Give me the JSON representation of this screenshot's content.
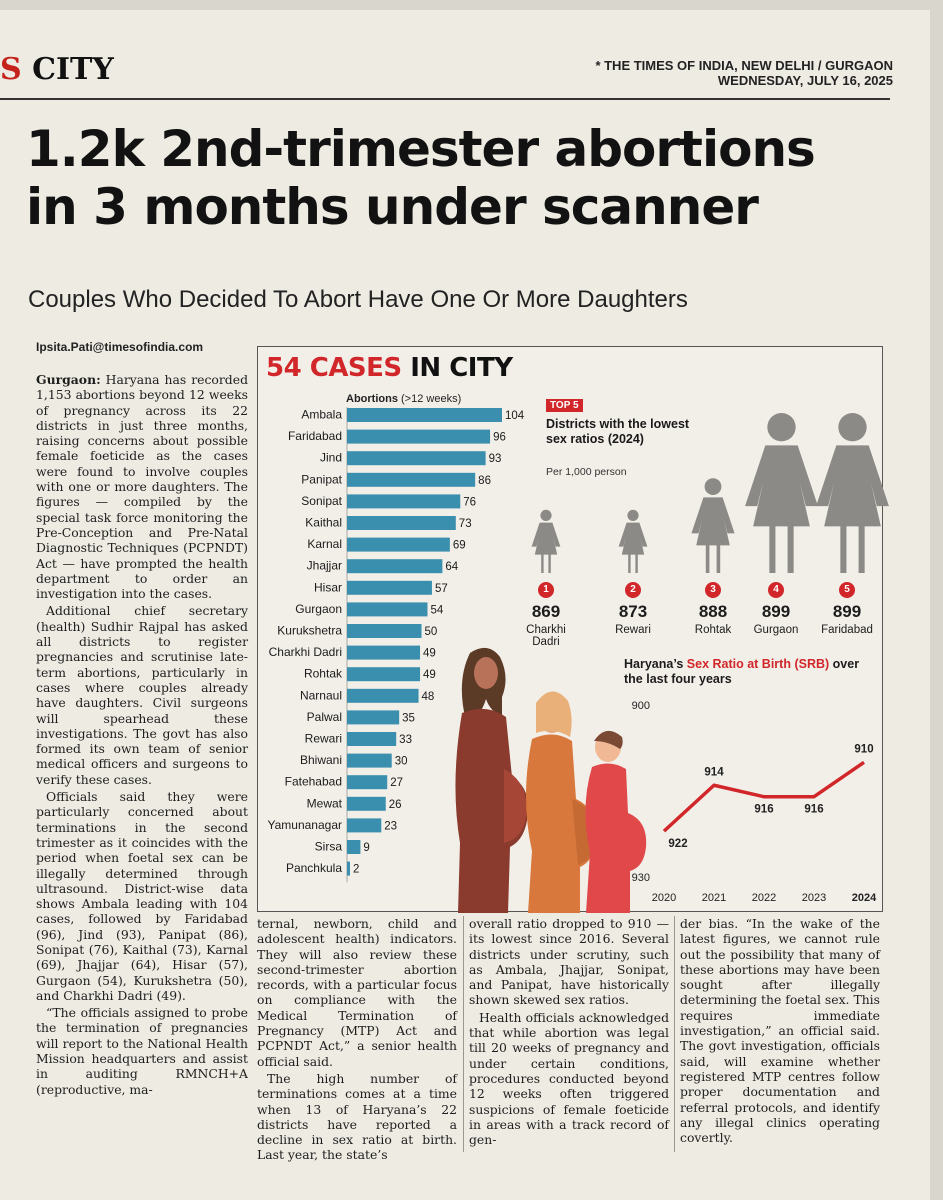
{
  "header": {
    "section": "CITY",
    "section_cut": "S",
    "publication": "* THE TIMES OF INDIA, NEW DELHI / GURGAON",
    "date": "WEDNESDAY, JULY 16, 2025"
  },
  "article": {
    "headline_line1": "1.2k 2nd-trimester abortions",
    "headline_line2": "in 3 months under scanner",
    "subhead": "Couples Who Decided To Abort Have One Or More Daughters",
    "byline": "Ipsita.Pati@timesofindia.com",
    "dateline": "Gurgaon:",
    "col1": [
      " Haryana has recorded 1,153 abortions beyond 12 weeks of pregnancy across its 22 districts in just three months, raising concerns about possible female foeticide as the cases were found to involve couples with one or more daughters. The figures — compiled by the special task force monitoring the Pre-Conception and Pre-Natal Diagnostic Techniques (PCPNDT) Act — have prompted the health department to order an investigation into the cases.",
      "Additional chief secretary (health) Sudhir Rajpal has asked all districts to register pregnancies and scrutinise late-term abortions, particularly in cases where couples already have daughters. Civil surgeons will spearhead these investigations. The govt has also formed its own team of senior medical officers and surgeons to verify these cases.",
      "Officials said they were particularly concerned about terminations in the second trimester as it coincides with the period when foetal sex can be illegally determined through ultrasound. District-wise data shows Ambala leading with 104 cases, followed by Faridabad (96), Jind (93), Panipat (86), Sonipat (76), Kaithal (73), Karnal (69), Jhajjar (64), Hisar (57), Gurgaon (54), Kurukshetra (50), and Charkhi Dadri (49).",
      "“The officials assigned to probe the termination of pregnancies will report to the National Health Mission headquarters and assist in auditing RMNCH+A (reproductive, ma-"
    ],
    "col2": [
      "ternal, newborn, child and adolescent health) indicators. They will also review these second-trimester abortion records, with a particular focus on compliance with the Medical Termination of Pregnancy (MTP) Act and PCPNDT Act,” a senior health official said.",
      "The high number of terminations comes at a time when 13 of Haryana’s 22 districts have reported a decline in sex ratio at birth. Last year, the state’s"
    ],
    "col3": [
      "overall ratio dropped to 910 — its lowest since 2016. Several districts under scrutiny, such as Ambala, Jhajjar, Sonipat, and Panipat, have historically shown skewed sex ratios.",
      "Health officials acknowledged that while abortion was legal till 20 weeks of pregnancy and under certain conditions, procedures conducted beyond 12 weeks often triggered suspicions of female foeticide in areas with a track record of gen-"
    ],
    "col4": [
      "der bias. “In the wake of the latest figures, we cannot rule out the possibility that many of these abortions may have been sought after illegally determining the foetal sex. This requires immediate investigation,” an official said. The govt investigation, officials said, will examine whether registered MTP centres follow proper documentation and referral protocols, and identify any illegal clinics operating covertly."
    ]
  },
  "infographic": {
    "title_red": "54 CASES",
    "title_black": "IN CITY",
    "bar_header_bold": "Abortions",
    "bar_header_rest": "(>12 weeks)",
    "top5_tag": "TOP 5",
    "top5_title": "Districts with the lowest sex ratios (2024)",
    "top5_sub": "Per 1,000 person",
    "srb_title_a": "Haryana’s ",
    "srb_title_red": "Sex Ratio at Birth (SRB)",
    "srb_title_b": "over the last four years"
  },
  "top5": [
    {
      "rank": "1",
      "ratio": "869",
      "district": "Charkhi Dadri"
    },
    {
      "rank": "2",
      "ratio": "873",
      "district": "Rewari"
    },
    {
      "rank": "3",
      "ratio": "888",
      "district": "Rohtak"
    },
    {
      "rank": "4",
      "ratio": "899",
      "district": "Gurgaon"
    },
    {
      "rank": "5",
      "ratio": "899",
      "district": "Faridabad"
    }
  ],
  "colors": {
    "bar": "#3b8fae",
    "accent_red": "#d1262a",
    "figure_grey": "#8c8a86"
  },
  "chart_data": [
    {
      "type": "bar",
      "orientation": "horizontal",
      "title": "Abortions (>12 weeks)",
      "categories": [
        "Ambala",
        "Faridabad",
        "Jind",
        "Panipat",
        "Sonipat",
        "Kaithal",
        "Karnal",
        "Jhajjar",
        "Hisar",
        "Gurgaon",
        "Kurukshetra",
        "Charkhi Dadri",
        "Rohtak",
        "Narnaul",
        "Palwal",
        "Rewari",
        "Bhiwani",
        "Fatehabad",
        "Mewat",
        "Yamunanagar",
        "Sirsa",
        "Panchkula"
      ],
      "values": [
        104,
        96,
        93,
        86,
        76,
        73,
        69,
        64,
        57,
        54,
        50,
        49,
        49,
        48,
        35,
        33,
        30,
        27,
        26,
        23,
        9,
        2
      ]
    },
    {
      "type": "line",
      "title": "Haryana’s Sex Ratio at Birth (SRB) over the last four years",
      "x": [
        "2020",
        "2021",
        "2022",
        "2023",
        "2024"
      ],
      "values": [
        922,
        914,
        916,
        916,
        910
      ],
      "y_ticks": [
        "900",
        "930"
      ],
      "ylim": [
        930,
        900
      ],
      "y_inverted": true
    }
  ]
}
